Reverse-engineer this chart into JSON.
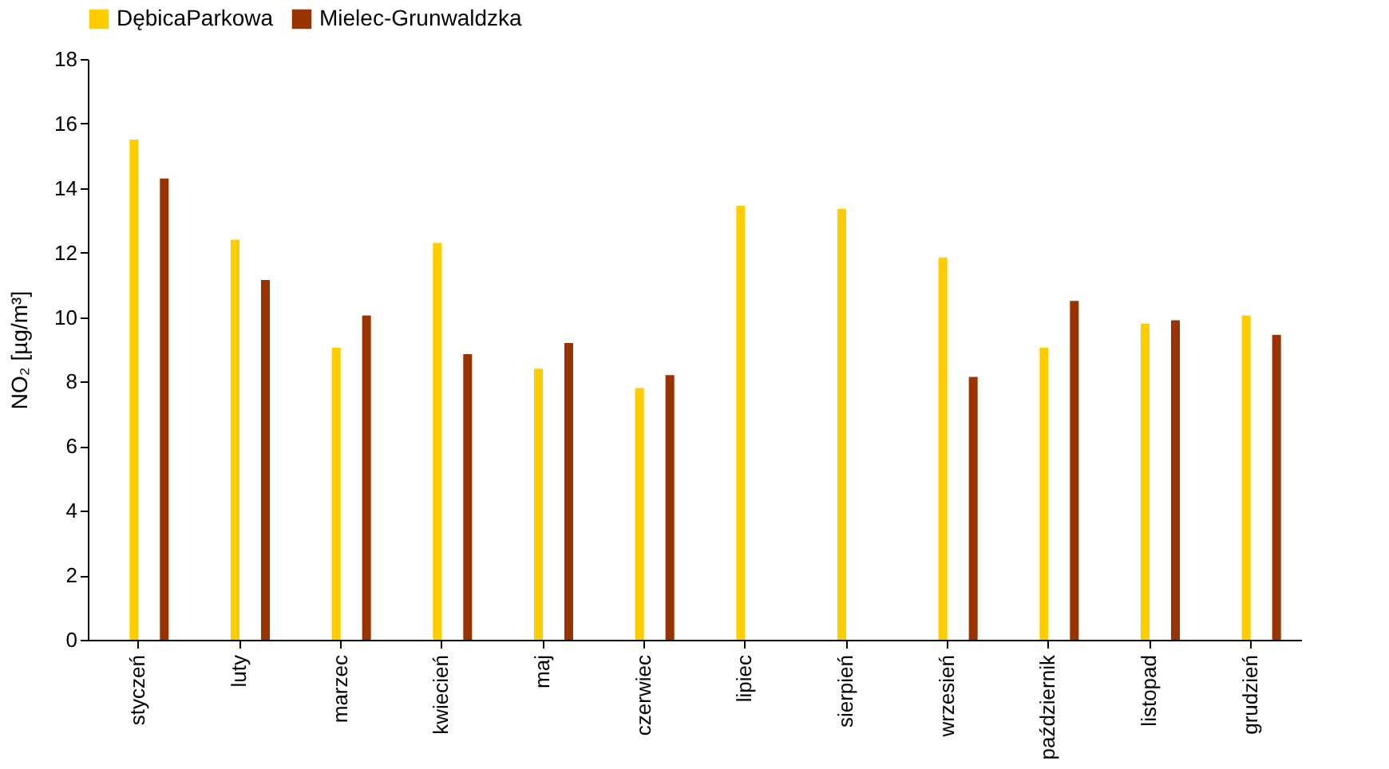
{
  "chart_data": {
    "type": "bar",
    "ylabel": "NO₂ [µg/m³]",
    "categories": [
      "styczeń",
      "luty",
      "marzec",
      "kwiecień",
      "maj",
      "czerwiec",
      "lipiec",
      "sierpień",
      "wrzesień",
      "październik",
      "listopad",
      "grudzień"
    ],
    "series": [
      {
        "name": "DębicaParkowa",
        "color": "#ffcc00",
        "values": [
          15.5,
          12.4,
          9.05,
          12.3,
          8.4,
          7.8,
          13.45,
          13.35,
          11.85,
          9.05,
          9.8,
          10.05
        ]
      },
      {
        "name": "Mielec-Grunwaldzka",
        "color": "#993300",
        "values": [
          14.3,
          11.15,
          10.05,
          8.85,
          9.2,
          8.2,
          null,
          null,
          8.15,
          10.5,
          9.9,
          9.45
        ]
      }
    ],
    "ylim": [
      0,
      18
    ],
    "yticks": [
      0,
      2,
      4,
      6,
      8,
      10,
      12,
      14,
      16,
      18
    ],
    "legend": "top"
  }
}
